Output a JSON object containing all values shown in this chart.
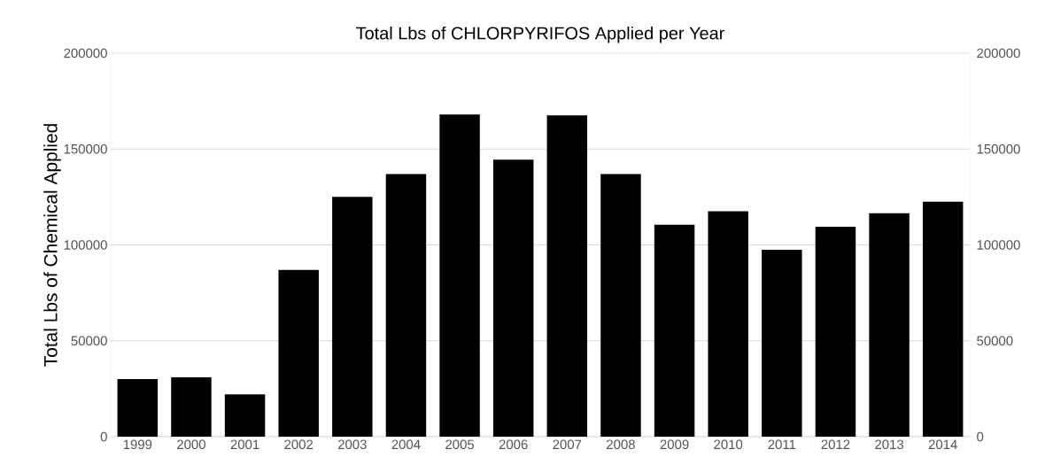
{
  "chart_data": {
    "type": "bar",
    "title": "Total Lbs of CHLORPYRIFOS Applied per Year",
    "ylabel": "Total Lbs of Chemical Applied",
    "categories": [
      "1999",
      "2000",
      "2001",
      "2002",
      "2003",
      "2004",
      "2005",
      "2006",
      "2007",
      "2008",
      "2009",
      "2010",
      "2011",
      "2012",
      "2013",
      "2014"
    ],
    "values": [
      30000,
      31000,
      22000,
      87000,
      125000,
      137000,
      168000,
      144500,
      167500,
      137000,
      110500,
      117500,
      97500,
      109500,
      116500,
      122500
    ],
    "color": "#000000",
    "ylim": [
      0,
      200000
    ],
    "yticks": [
      0,
      50000,
      100000,
      150000,
      200000
    ],
    "y2lim": [
      0,
      200000
    ],
    "y2ticks": [
      0,
      50000,
      100000,
      150000,
      200000
    ],
    "grid": "y"
  }
}
